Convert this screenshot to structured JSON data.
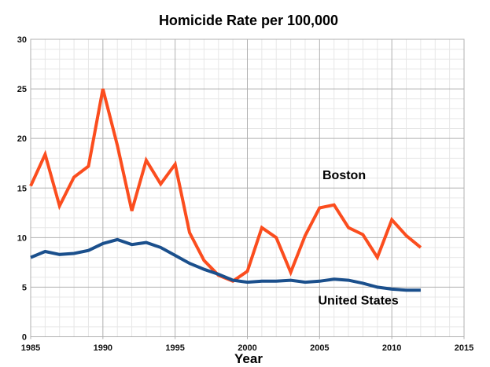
{
  "title": "Homicide Rate per 100,000",
  "colors": {
    "background": "#ffffff",
    "boston_line": "#fb4d1e",
    "us_line": "#1a4f8c",
    "grid_minor": "#e7e7e7",
    "grid_major": "#b0b0b0",
    "axis_text": "#111111"
  },
  "chart_data": {
    "type": "line",
    "title": "Homicide Rate per 100,000",
    "xlabel": "Year",
    "ylabel": "",
    "xlim": [
      1985,
      2015
    ],
    "ylim": [
      0,
      30
    ],
    "x_ticks": [
      1985,
      1990,
      1995,
      2000,
      2005,
      2010,
      2015
    ],
    "y_ticks": [
      0,
      5,
      10,
      15,
      20,
      25,
      30
    ],
    "minor_grid_step_x": 1,
    "minor_grid_step_y": 1,
    "grid": "minor and major gridlines on",
    "legend_position": "inline annotations near lines",
    "x": [
      1985,
      1986,
      1987,
      1988,
      1989,
      1990,
      1991,
      1992,
      1993,
      1994,
      1995,
      1996,
      1997,
      1998,
      1999,
      2000,
      2001,
      2002,
      2003,
      2004,
      2005,
      2006,
      2007,
      2008,
      2009,
      2010,
      2011,
      2012
    ],
    "series": [
      {
        "name": "Boston",
        "color": "#fb4d1e",
        "values": [
          15.2,
          18.4,
          13.2,
          16.1,
          17.2,
          25.0,
          19.3,
          12.7,
          17.8,
          15.4,
          17.4,
          10.5,
          7.7,
          6.2,
          5.6,
          6.6,
          11.0,
          10.0,
          6.5,
          10.2,
          13.0,
          13.3,
          11.0,
          10.3,
          8.0,
          11.8,
          10.2,
          9.0
        ],
        "label_x": 2005.2,
        "label_y": 16.3
      },
      {
        "name": "United States",
        "color": "#1a4f8c",
        "values": [
          8.0,
          8.6,
          8.3,
          8.4,
          8.7,
          9.4,
          9.8,
          9.3,
          9.5,
          9.0,
          8.2,
          7.4,
          6.8,
          6.3,
          5.7,
          5.5,
          5.6,
          5.6,
          5.7,
          5.5,
          5.6,
          5.8,
          5.7,
          5.4,
          5.0,
          4.8,
          4.7,
          4.7
        ],
        "label_x": 2004.9,
        "label_y": 3.65
      }
    ]
  }
}
